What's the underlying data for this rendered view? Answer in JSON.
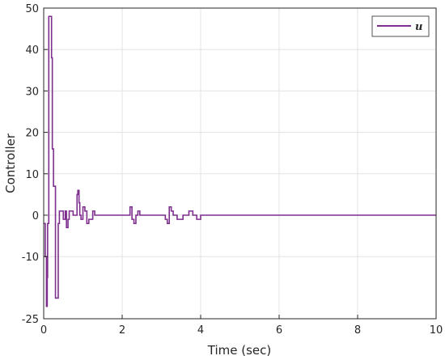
{
  "chart_data": {
    "type": "line",
    "xlabel": "Time (sec)",
    "ylabel": "Controller",
    "xlim": [
      0,
      10
    ],
    "ylim": [
      -25,
      50
    ],
    "xticks": [
      0,
      2,
      4,
      6,
      8,
      10
    ],
    "yticks": [
      -25,
      -10,
      0,
      10,
      20,
      30,
      40,
      50
    ],
    "grid": true,
    "legend_position": "top-right",
    "series": [
      {
        "name": "u",
        "color": "#7e2f8e",
        "step": true,
        "x": [
          0,
          0.04,
          0.07,
          0.09,
          0.1,
          0.13,
          0.2,
          0.22,
          0.25,
          0.3,
          0.37,
          0.4,
          0.45,
          0.5,
          0.55,
          0.58,
          0.62,
          0.65,
          0.67,
          0.75,
          0.85,
          0.87,
          0.9,
          0.92,
          0.95,
          1.0,
          1.05,
          1.1,
          1.15,
          1.25,
          1.3,
          1.35,
          1.45,
          1.55,
          1.65,
          2.2,
          2.25,
          2.3,
          2.35,
          2.4,
          2.45,
          2.55,
          3.1,
          3.15,
          3.2,
          3.25,
          3.3,
          3.4,
          3.55,
          3.7,
          3.8,
          3.9,
          4.0,
          4.1,
          4.2,
          4.7,
          4.8,
          5.5,
          5.6,
          6.8,
          6.9,
          9.2,
          9.3,
          10.0
        ],
        "values": [
          -2,
          -10,
          -22,
          -15,
          -2,
          48,
          38,
          16,
          7,
          -20,
          -2,
          1,
          1,
          -1,
          1,
          -3,
          -1,
          1,
          1,
          0,
          5,
          6,
          3,
          0,
          -1,
          2,
          1,
          -2,
          -1,
          1,
          0,
          0,
          0,
          0,
          0,
          2,
          -1,
          -2,
          0,
          1,
          0,
          0,
          -1,
          -2,
          2,
          1,
          0,
          -1,
          0,
          1,
          0,
          -1,
          0,
          0,
          0,
          0,
          0,
          0,
          0,
          0,
          0,
          0,
          0,
          0
        ]
      }
    ]
  }
}
